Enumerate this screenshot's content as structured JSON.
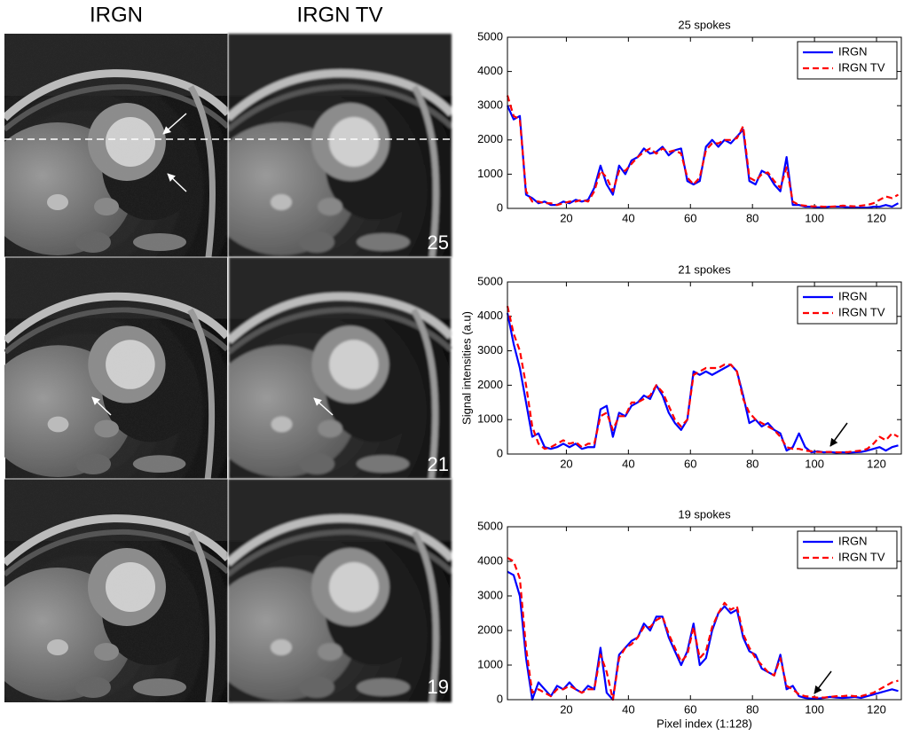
{
  "image_panels": {
    "columns": [
      "IRGN",
      "IRGN TV"
    ],
    "row_labels": [
      "25",
      "21",
      "19"
    ]
  },
  "chart_data": [
    {
      "type": "line",
      "title": "25 spokes",
      "x": [
        1,
        3,
        5,
        7,
        9,
        11,
        13,
        15,
        17,
        19,
        21,
        23,
        25,
        27,
        29,
        31,
        33,
        35,
        37,
        39,
        41,
        43,
        45,
        47,
        49,
        51,
        53,
        55,
        57,
        59,
        61,
        63,
        65,
        67,
        69,
        71,
        73,
        75,
        77,
        79,
        81,
        83,
        85,
        87,
        89,
        91,
        93,
        95,
        97,
        99,
        101,
        103,
        105,
        107,
        109,
        111,
        113,
        115,
        117,
        119,
        121,
        123,
        125,
        127
      ],
      "xlim": [
        1,
        128
      ],
      "xticks": [
        20,
        40,
        60,
        80,
        100,
        120
      ],
      "ylim": [
        0,
        5000
      ],
      "yticks": [
        0,
        1000,
        2000,
        3000,
        4000,
        5000
      ],
      "legend": "upper right",
      "series": [
        {
          "name": "IRGN",
          "color": "#0000ff",
          "line_style": "solid",
          "values": [
            3000,
            2600,
            2700,
            400,
            300,
            150,
            200,
            100,
            100,
            200,
            150,
            250,
            200,
            250,
            600,
            1250,
            700,
            400,
            1250,
            1000,
            1400,
            1500,
            1750,
            1600,
            1650,
            1800,
            1550,
            1700,
            1750,
            800,
            700,
            800,
            1800,
            2000,
            1800,
            2000,
            1900,
            2100,
            2300,
            800,
            700,
            1100,
            1000,
            700,
            500,
            1500,
            100,
            100,
            50,
            50,
            30,
            30,
            50,
            50,
            50,
            30,
            30,
            20,
            20,
            50,
            50,
            100,
            50,
            150
          ]
        },
        {
          "name": "IRGN TV",
          "color": "#ff0000",
          "line_style": "dashed",
          "values": [
            3300,
            2700,
            2600,
            500,
            200,
            200,
            150,
            150,
            100,
            150,
            200,
            200,
            250,
            200,
            500,
            1100,
            900,
            500,
            1100,
            1100,
            1300,
            1500,
            1650,
            1750,
            1600,
            1750,
            1650,
            1700,
            1600,
            900,
            700,
            900,
            1700,
            1900,
            1900,
            2000,
            2000,
            2050,
            2400,
            900,
            800,
            1000,
            1050,
            800,
            600,
            1200,
            200,
            100,
            80,
            60,
            60,
            50,
            50,
            60,
            80,
            70,
            60,
            80,
            100,
            150,
            250,
            350,
            300,
            400
          ]
        }
      ]
    },
    {
      "type": "line",
      "title": "21 spokes",
      "ylabel": "Signal intensities (a.u)",
      "x": [
        1,
        3,
        5,
        7,
        9,
        11,
        13,
        15,
        17,
        19,
        21,
        23,
        25,
        27,
        29,
        31,
        33,
        35,
        37,
        39,
        41,
        43,
        45,
        47,
        49,
        51,
        53,
        55,
        57,
        59,
        61,
        63,
        65,
        67,
        69,
        71,
        73,
        75,
        77,
        79,
        81,
        83,
        85,
        87,
        89,
        91,
        93,
        95,
        97,
        99,
        101,
        103,
        105,
        107,
        109,
        111,
        113,
        115,
        117,
        119,
        121,
        123,
        125,
        127
      ],
      "xlim": [
        1,
        128
      ],
      "xticks": [
        20,
        40,
        60,
        80,
        100,
        120
      ],
      "ylim": [
        0,
        5000
      ],
      "yticks": [
        0,
        1000,
        2000,
        3000,
        4000,
        5000
      ],
      "legend": "upper right",
      "series": [
        {
          "name": "IRGN",
          "color": "#0000ff",
          "line_style": "solid",
          "values": [
            4100,
            3200,
            2500,
            1500,
            500,
            600,
            200,
            150,
            200,
            300,
            200,
            300,
            150,
            200,
            200,
            1300,
            1400,
            500,
            1200,
            1100,
            1400,
            1500,
            1700,
            1600,
            2000,
            1700,
            1200,
            900,
            700,
            1000,
            2400,
            2300,
            2400,
            2300,
            2400,
            2500,
            2600,
            2400,
            1700,
            900,
            1000,
            800,
            900,
            700,
            600,
            100,
            200,
            600,
            200,
            50,
            80,
            50,
            60,
            40,
            50,
            40,
            50,
            60,
            100,
            150,
            200,
            100,
            200,
            250
          ]
        },
        {
          "name": "IRGN TV",
          "color": "#ff0000",
          "line_style": "dashed",
          "values": [
            4300,
            3500,
            3000,
            2000,
            800,
            300,
            150,
            200,
            300,
            400,
            300,
            350,
            200,
            300,
            300,
            1100,
            1200,
            700,
            1100,
            1100,
            1500,
            1500,
            1600,
            1700,
            2000,
            1800,
            1400,
            1000,
            800,
            1000,
            2300,
            2400,
            2500,
            2500,
            2500,
            2600,
            2600,
            2400,
            1600,
            1200,
            1000,
            900,
            800,
            700,
            500,
            200,
            150,
            150,
            100,
            80,
            60,
            60,
            60,
            50,
            50,
            60,
            80,
            100,
            150,
            300,
            500,
            400,
            600,
            500
          ]
        }
      ]
    },
    {
      "type": "line",
      "title": "19 spokes",
      "xlabel": "Pixel index (1:128)",
      "x": [
        1,
        3,
        5,
        7,
        9,
        11,
        13,
        15,
        17,
        19,
        21,
        23,
        25,
        27,
        29,
        31,
        33,
        35,
        37,
        39,
        41,
        43,
        45,
        47,
        49,
        51,
        53,
        55,
        57,
        59,
        61,
        63,
        65,
        67,
        69,
        71,
        73,
        75,
        77,
        79,
        81,
        83,
        85,
        87,
        89,
        91,
        93,
        95,
        97,
        99,
        101,
        103,
        105,
        107,
        109,
        111,
        113,
        115,
        117,
        119,
        121,
        123,
        125,
        127
      ],
      "xlim": [
        1,
        128
      ],
      "xticks": [
        20,
        40,
        60,
        80,
        100,
        120
      ],
      "ylim": [
        0,
        5000
      ],
      "yticks": [
        0,
        1000,
        2000,
        3000,
        4000,
        5000
      ],
      "legend": "upper right",
      "series": [
        {
          "name": "IRGN",
          "color": "#0000ff",
          "line_style": "solid",
          "values": [
            3700,
            3600,
            3000,
            1200,
            0,
            500,
            300,
            100,
            400,
            300,
            500,
            300,
            200,
            400,
            300,
            1500,
            200,
            0,
            1300,
            1500,
            1700,
            1800,
            2200,
            2000,
            2400,
            2400,
            1800,
            1400,
            1000,
            1400,
            2200,
            1000,
            1200,
            2000,
            2500,
            2700,
            2500,
            2600,
            1800,
            1400,
            1300,
            900,
            800,
            700,
            1300,
            300,
            400,
            100,
            50,
            30,
            30,
            50,
            80,
            60,
            50,
            60,
            80,
            50,
            100,
            150,
            200,
            250,
            300,
            250
          ]
        },
        {
          "name": "IRGN TV",
          "color": "#ff0000",
          "line_style": "dashed",
          "values": [
            4100,
            4000,
            3500,
            1500,
            200,
            300,
            200,
            100,
            300,
            300,
            400,
            300,
            200,
            300,
            300,
            1300,
            800,
            0,
            1200,
            1500,
            1600,
            1800,
            2100,
            2100,
            2300,
            2400,
            1900,
            1500,
            1100,
            1300,
            2100,
            1200,
            1400,
            2100,
            2500,
            2800,
            2600,
            2700,
            1900,
            1500,
            1200,
            1000,
            800,
            700,
            1200,
            400,
            300,
            150,
            100,
            80,
            60,
            60,
            80,
            100,
            100,
            120,
            100,
            100,
            150,
            200,
            300,
            400,
            500,
            550
          ]
        }
      ]
    }
  ]
}
